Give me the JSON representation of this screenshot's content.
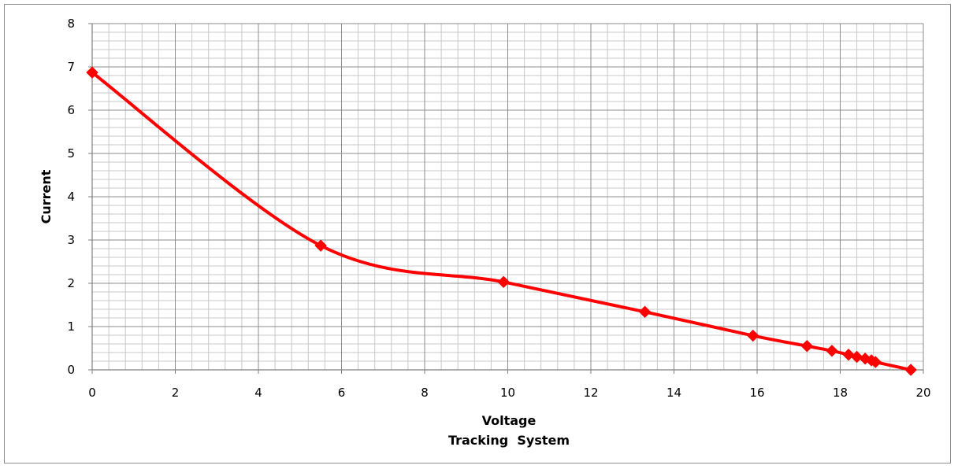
{
  "chart_data": {
    "type": "line",
    "title": "",
    "xlabel": "Voltage",
    "subtitle": "Tracking  System",
    "ylabel": "Current",
    "xlim": [
      0,
      20
    ],
    "ylim": [
      0,
      8
    ],
    "x_ticks": [
      "0",
      "2",
      "4",
      "6",
      "8",
      "10",
      "12",
      "14",
      "16",
      "18",
      "20"
    ],
    "y_ticks": [
      "0",
      "1",
      "2",
      "3",
      "4",
      "5",
      "6",
      "7",
      "8"
    ],
    "grid": true,
    "legend": "none",
    "series": [
      {
        "color": "#ff0000",
        "marker": "diamond",
        "x": [
          0,
          5.5,
          9.9,
          13.3,
          15.9,
          17.2,
          17.8,
          18.2,
          18.4,
          18.6,
          18.75,
          18.85,
          19.7
        ],
        "y": [
          6.87,
          2.87,
          2.03,
          1.34,
          0.79,
          0.55,
          0.44,
          0.35,
          0.3,
          0.26,
          0.22,
          0.18,
          0.0
        ]
      }
    ]
  }
}
